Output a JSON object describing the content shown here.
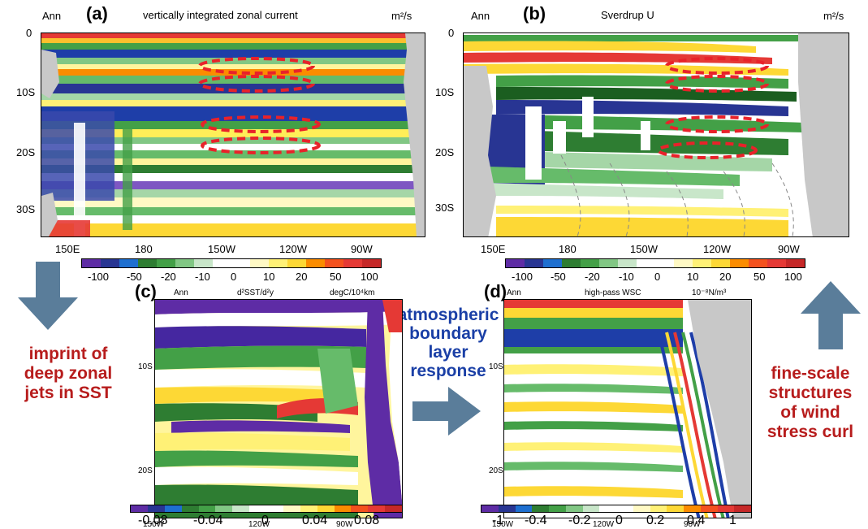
{
  "panels": {
    "a": {
      "label": "(a)",
      "season": "Ann",
      "title": "vertically integrated zonal current",
      "units": "m²/s",
      "y_ticks": [
        "0",
        "10S",
        "20S",
        "30S"
      ],
      "x_ticks": [
        "150E",
        "180",
        "150W",
        "120W",
        "90W"
      ]
    },
    "b": {
      "label": "(b)",
      "season": "Ann",
      "title": "Sverdrup U",
      "units": "m²/s",
      "y_ticks": [
        "0",
        "10S",
        "20S",
        "30S"
      ],
      "x_ticks": [
        "150E",
        "180",
        "150W",
        "120W",
        "90W"
      ]
    },
    "c": {
      "label": "(c)",
      "season": "Ann",
      "field": "d²SST/d²y",
      "units": "degC/10⁴km",
      "y_ticks": [
        "10S",
        "20S"
      ],
      "x_ticks": [
        "150W",
        "120W",
        "90W"
      ]
    },
    "d": {
      "label": "(d)",
      "season": "Ann",
      "field": "high-pass WSC",
      "units": "10⁻⁸N/m³",
      "y_ticks": [
        "10S",
        "20S"
      ],
      "x_ticks": [
        "150W",
        "120W",
        "90W"
      ]
    }
  },
  "colorbars": {
    "top": [
      "-100",
      "-50",
      "-20",
      "-10",
      "0",
      "10",
      "20",
      "50",
      "100"
    ],
    "c": [
      "-0.08",
      "-0.04",
      "0",
      "0.04",
      "0.08"
    ],
    "d": [
      "-1",
      "-0.4",
      "-0.2",
      "0",
      "0.2",
      "0.4",
      "1"
    ]
  },
  "annotations": {
    "left_line1": "imprint of",
    "left_line2": "deep zonal",
    "left_line3": "jets in SST",
    "middle_line1": "atmospheric",
    "middle_line2": "boundary",
    "middle_line3": "layer",
    "middle_line4": "response",
    "right_line1": "fine-scale",
    "right_line2": "structures",
    "right_line3": "of wind",
    "right_line4": "stress curl"
  },
  "colors": {
    "arrow": "#5a7d9a",
    "annotation_red": "#b71c1c",
    "annotation_blue": "#1a3fa6",
    "land": "#c8c8c8",
    "dashed_box": "#e8222a"
  }
}
